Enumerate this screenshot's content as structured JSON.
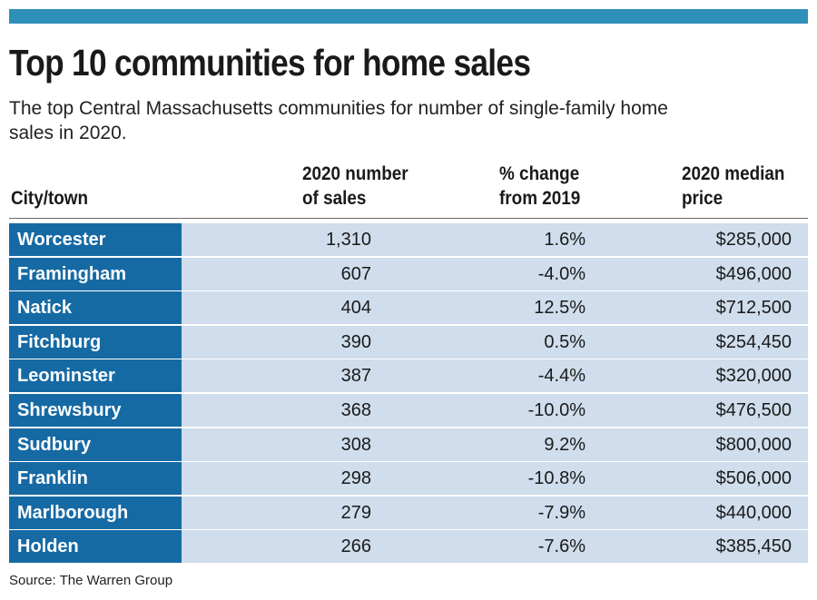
{
  "chart_data": {
    "type": "table",
    "title": "Top 10 communities for home sales",
    "subtitle": "The top Central Massachusetts communities for number of single-family home sales in 2020.",
    "columns": [
      {
        "line1": "City/town",
        "line2": ""
      },
      {
        "line1": "2020 number",
        "line2": "of sales"
      },
      {
        "line1": "% change",
        "line2": "from 2019"
      },
      {
        "line1": "2020 median",
        "line2": "price"
      }
    ],
    "rows": [
      {
        "city": "Worcester",
        "sales": "1,310",
        "change": "1.6%",
        "price": "$285,000"
      },
      {
        "city": "Framingham",
        "sales": "607",
        "change": "-4.0%",
        "price": "$496,000"
      },
      {
        "city": "Natick",
        "sales": "404",
        "change": "12.5%",
        "price": "$712,500"
      },
      {
        "city": "Fitchburg",
        "sales": "390",
        "change": "0.5%",
        "price": "$254,450"
      },
      {
        "city": "Leominster",
        "sales": "387",
        "change": "-4.4%",
        "price": "$320,000"
      },
      {
        "city": "Shrewsbury",
        "sales": "368",
        "change": "-10.0%",
        "price": "$476,500"
      },
      {
        "city": "Sudbury",
        "sales": "308",
        "change": "9.2%",
        "price": "$800,000"
      },
      {
        "city": "Franklin",
        "sales": "298",
        "change": "-10.8%",
        "price": "$506,000"
      },
      {
        "city": "Marlborough",
        "sales": "279",
        "change": "-7.9%",
        "price": "$440,000"
      },
      {
        "city": "Holden",
        "sales": "266",
        "change": "-7.6%",
        "price": "$385,450"
      }
    ],
    "source": "Source: The Warren Group"
  },
  "colors": {
    "top_bar": "#2e8fb8",
    "city_cell": "#166aa4",
    "data_cell": "#cfddec"
  }
}
